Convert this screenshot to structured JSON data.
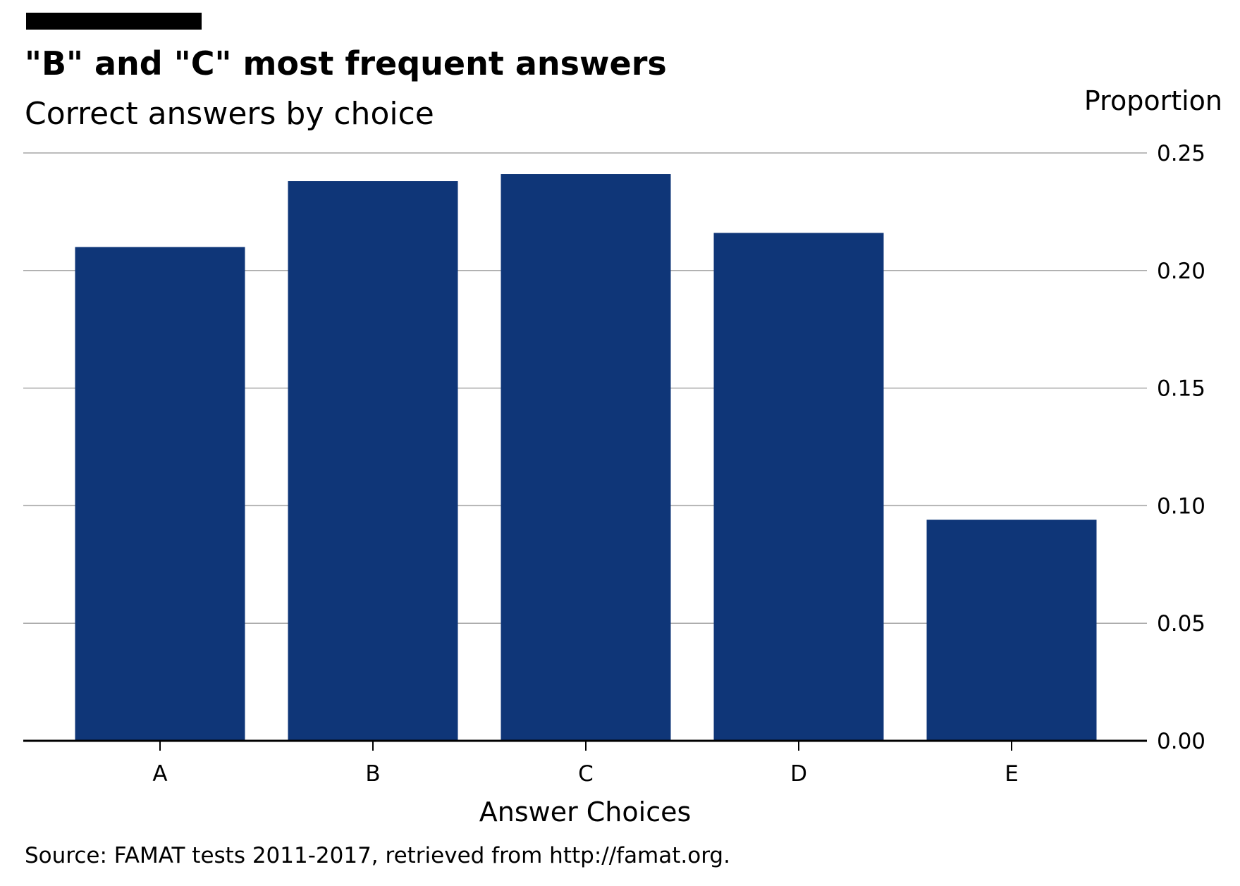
{
  "chart_data": {
    "type": "bar",
    "title": "\"B\" and \"C\" most frequent answers",
    "subtitle": "Correct answers by choice",
    "xlabel": "Answer Choices",
    "ylabel": "Proportion",
    "source": "Source: FAMAT tests 2011-2017, retrieved from http://famat.org.",
    "categories": [
      "A",
      "B",
      "C",
      "D",
      "E"
    ],
    "values": [
      0.21,
      0.238,
      0.241,
      0.216,
      0.094
    ],
    "ylim": [
      0,
      0.25
    ],
    "yticks": [
      0.0,
      0.05,
      0.1,
      0.15,
      0.2,
      0.25
    ],
    "ytick_labels": [
      "0.00",
      "0.05",
      "0.10",
      "0.15",
      "0.20",
      "0.25"
    ],
    "grid": true,
    "y_axis_side": "right",
    "colors": {
      "bar": "#0f3678",
      "accent_bar": "#000000",
      "grid": "#a6a6a6",
      "axis": "#000000"
    }
  }
}
